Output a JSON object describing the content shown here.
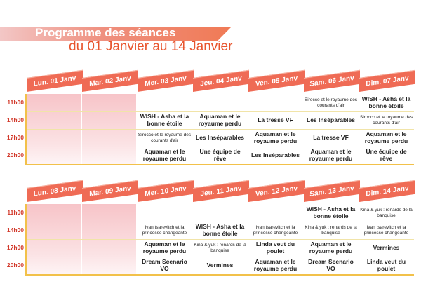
{
  "title": {
    "line1": "Programme des séances",
    "line2": "du 01 Janvier au 14 Janvier"
  },
  "hours": [
    "11h00",
    "14h00",
    "17h00",
    "20h00"
  ],
  "weeks": [
    {
      "days": [
        "Lun. 01 Janv",
        "Mar. 02 Janv",
        "Mer. 03 Janv",
        "Jeu. 04 Janv",
        "Ven. 05 Janv",
        "Sam. 06 Janv",
        "Dim. 07 Janv"
      ],
      "sessions": [
        [
          "",
          "",
          "",
          ""
        ],
        [
          "",
          "",
          "",
          ""
        ],
        [
          "",
          "WISH - Asha et la bonne étoile",
          "Sirocco et le royaume des courants d'air",
          "Aquaman et le royaume perdu"
        ],
        [
          "",
          "Aquaman et le royaume perdu",
          "Les Inséparables",
          "Une équipe de rêve"
        ],
        [
          "",
          "La tresse VF",
          "Aquaman et le royaume perdu",
          "Les Inséparables"
        ],
        [
          "Sirocco et le royaume des courants d'air",
          "Les Inséparables",
          "La tresse VF",
          "Aquaman et le royaume perdu"
        ],
        [
          "WISH - Asha et la bonne étoile",
          "Sirocco et le royaume des courants d'air",
          "Aquaman et le royaume perdu",
          "Une équipe de rêve"
        ]
      ]
    },
    {
      "days": [
        "Lun. 08 Janv",
        "Mar. 09 Janv",
        "Mer. 10 Janv",
        "Jeu. 11 Janv",
        "Ven. 12 Janv",
        "Sam. 13 Janv",
        "Dim. 14 Janv"
      ],
      "sessions": [
        [
          "",
          "",
          "",
          ""
        ],
        [
          "",
          "",
          "",
          ""
        ],
        [
          "",
          "Ivan tsarevitch et la princesse changeante",
          "Aquaman et le royaume perdu",
          "Dream Scenario VO"
        ],
        [
          "",
          "WISH - Asha et la bonne étoile",
          "Kina & yuk : renards de la banquise",
          "Vermines"
        ],
        [
          "",
          "Ivan tsarevitch et la princesse changeante",
          "Linda veut du poulet",
          "Aquaman et le royaume perdu"
        ],
        [
          "WISH - Asha et la bonne étoile",
          "Kina & yuk : renards de la banquise",
          "Aquaman et le royaume perdu",
          "Dream Scenario VO"
        ],
        [
          "Kina & yuk : renards de la banquise",
          "Ivan tsarevitch et la princesse changeante",
          "Vermines",
          "Linda veut du poulet"
        ]
      ]
    }
  ]
}
